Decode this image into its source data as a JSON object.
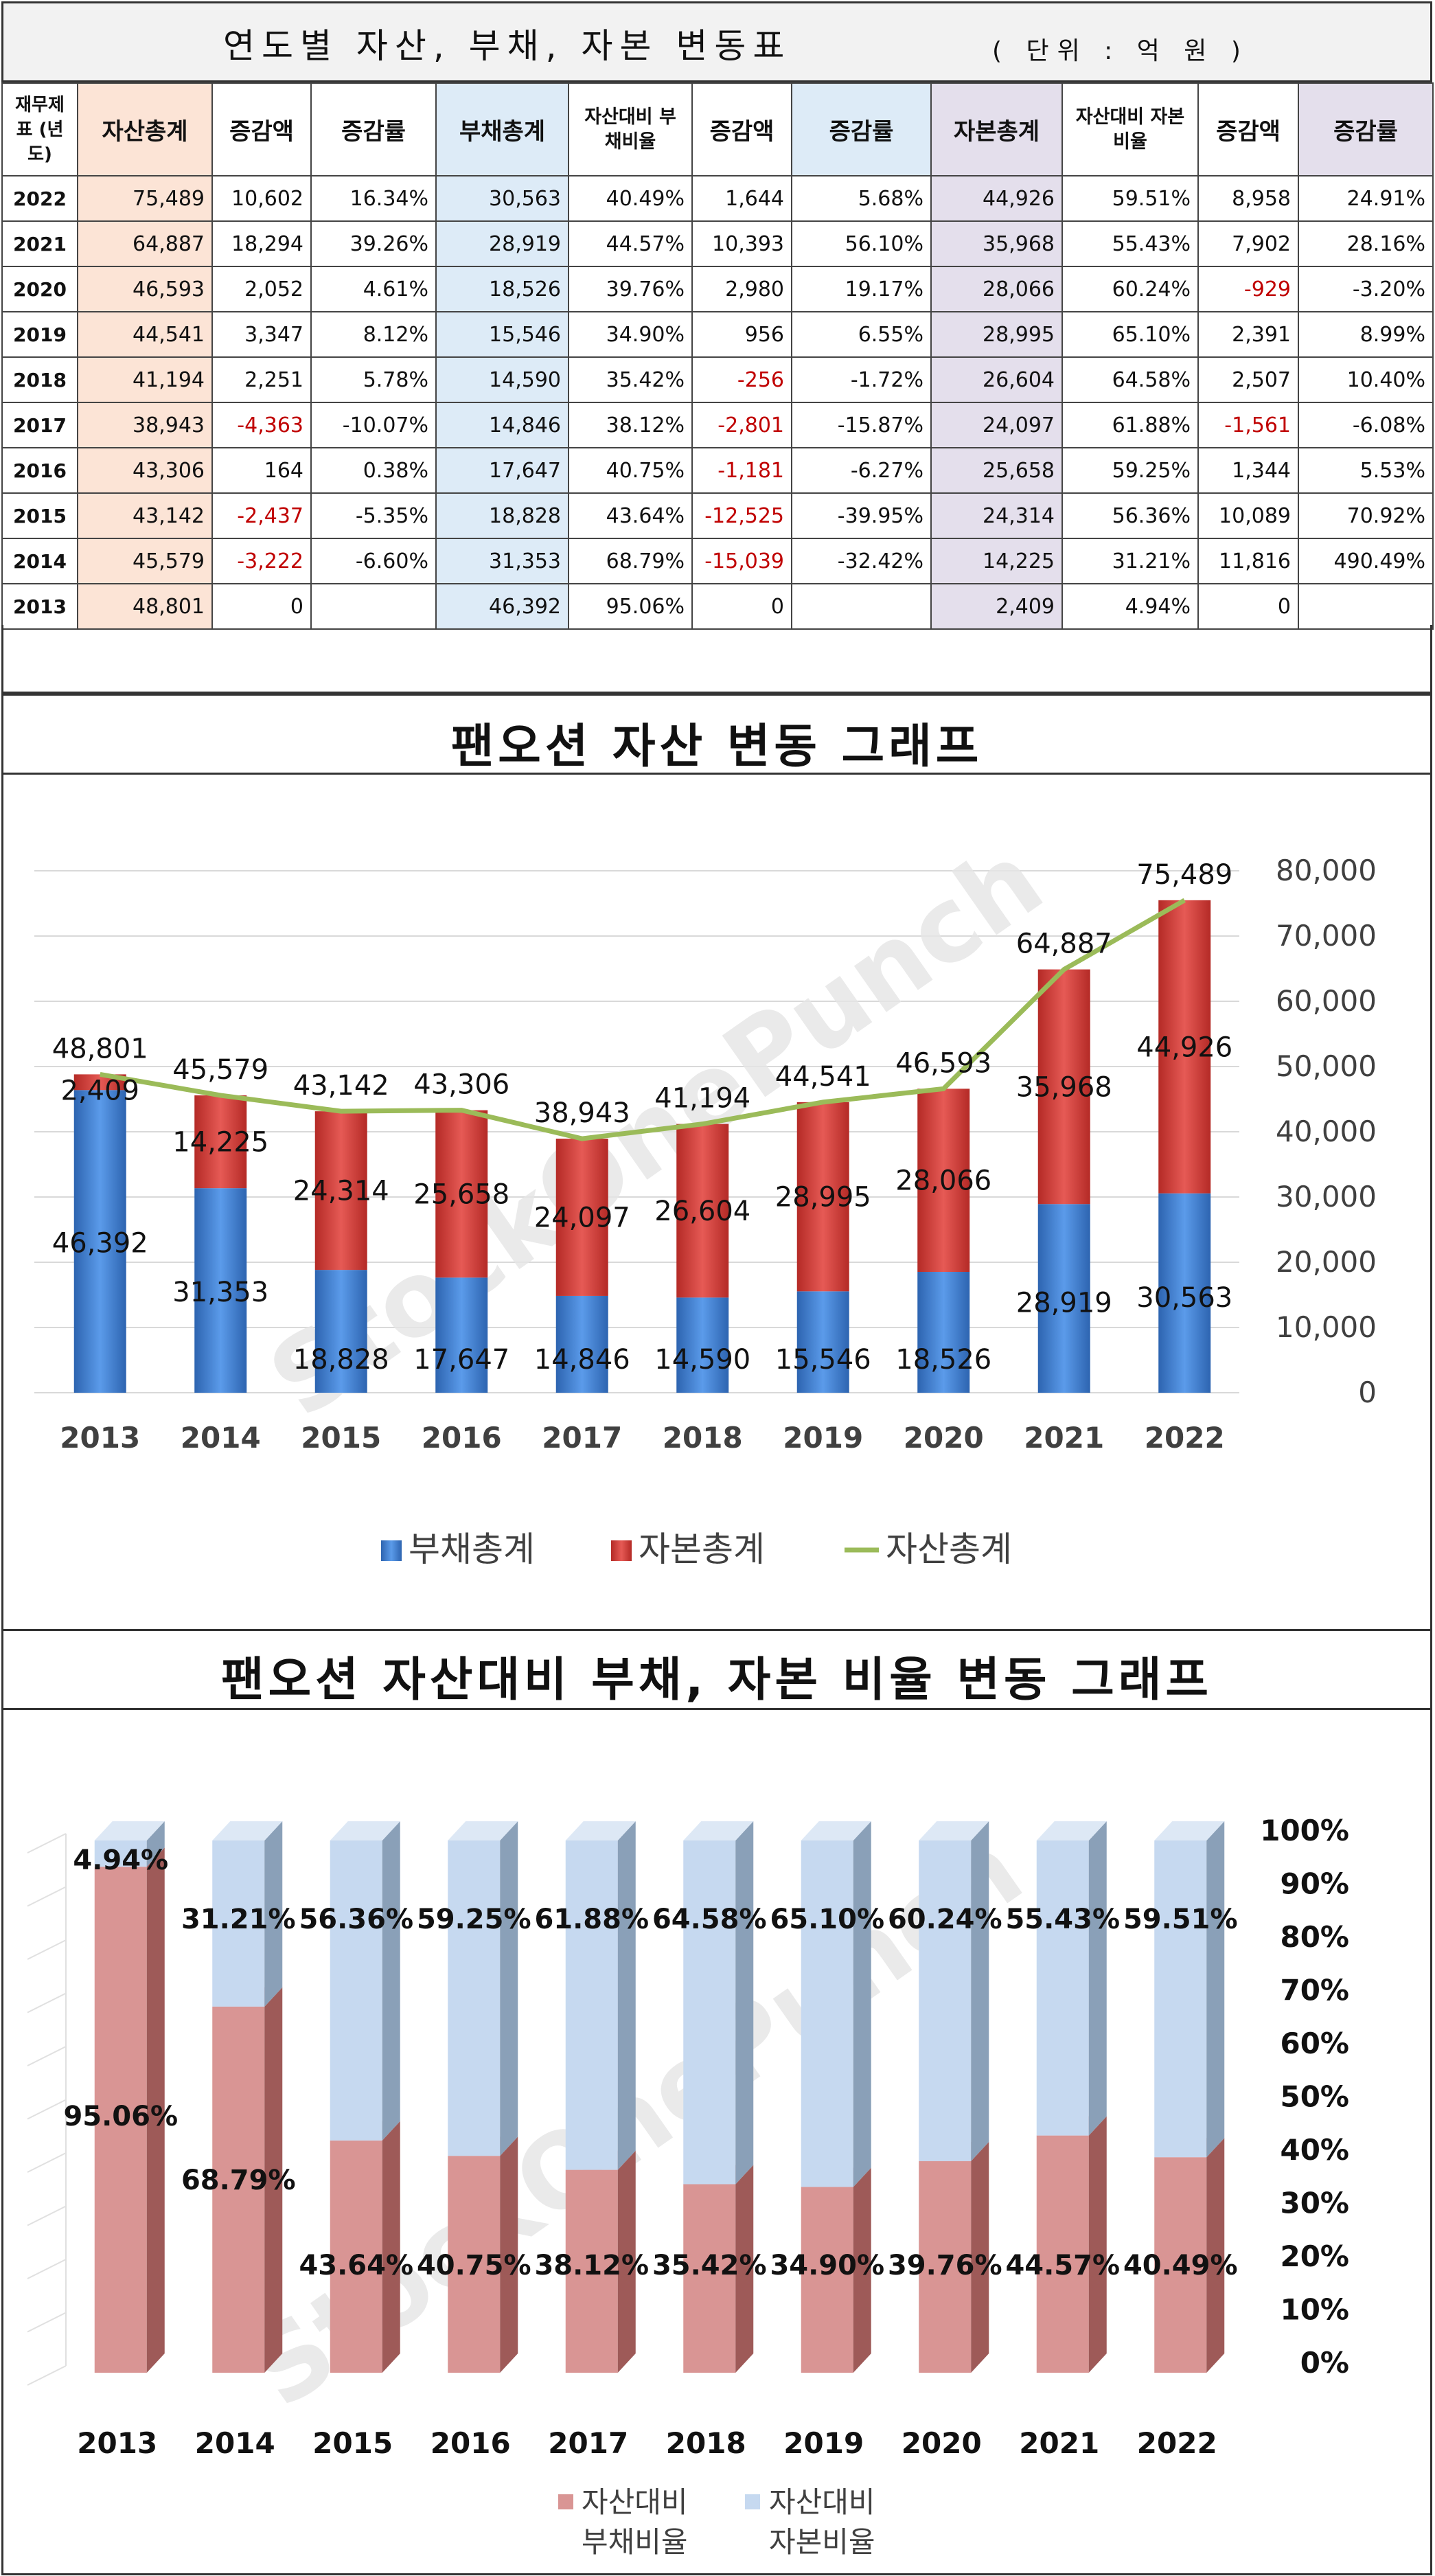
{
  "table": {
    "title": "연도별 자산, 부채, 자본 변동표",
    "unit": "( 단위 : 억 원 )",
    "headers": {
      "statement_year": "재무제표 (년도)",
      "total_assets": "자산총계",
      "asset_change": "증감액",
      "asset_rate": "증감률",
      "total_liabilities": "부채총계",
      "liab_ratio": "자산대비 부채비율",
      "liab_change": "증감액",
      "liab_rate": "증감률",
      "total_equity": "자본총계",
      "equity_ratio": "자산대비 자본비율",
      "equity_change": "증감액",
      "equity_rate": "증감률"
    },
    "rows": [
      {
        "year": "2022",
        "assets": "75,489",
        "asset_change": "10,602",
        "asset_rate": "16.34%",
        "liab": "30,563",
        "liab_ratio": "40.49%",
        "liab_change": "1,644",
        "liab_rate": "5.68%",
        "equity": "44,926",
        "equity_ratio": "59.51%",
        "equity_change": "8,958",
        "equity_rate": "24.91%"
      },
      {
        "year": "2021",
        "assets": "64,887",
        "asset_change": "18,294",
        "asset_rate": "39.26%",
        "liab": "28,919",
        "liab_ratio": "44.57%",
        "liab_change": "10,393",
        "liab_rate": "56.10%",
        "equity": "35,968",
        "equity_ratio": "55.43%",
        "equity_change": "7,902",
        "equity_rate": "28.16%"
      },
      {
        "year": "2020",
        "assets": "46,593",
        "asset_change": "2,052",
        "asset_rate": "4.61%",
        "liab": "18,526",
        "liab_ratio": "39.76%",
        "liab_change": "2,980",
        "liab_rate": "19.17%",
        "equity": "28,066",
        "equity_ratio": "60.24%",
        "equity_change": "-929",
        "equity_rate": "-3.20%"
      },
      {
        "year": "2019",
        "assets": "44,541",
        "asset_change": "3,347",
        "asset_rate": "8.12%",
        "liab": "15,546",
        "liab_ratio": "34.90%",
        "liab_change": "956",
        "liab_rate": "6.55%",
        "equity": "28,995",
        "equity_ratio": "65.10%",
        "equity_change": "2,391",
        "equity_rate": "8.99%"
      },
      {
        "year": "2018",
        "assets": "41,194",
        "asset_change": "2,251",
        "asset_rate": "5.78%",
        "liab": "14,590",
        "liab_ratio": "35.42%",
        "liab_change": "-256",
        "liab_rate": "-1.72%",
        "equity": "26,604",
        "equity_ratio": "64.58%",
        "equity_change": "2,507",
        "equity_rate": "10.40%"
      },
      {
        "year": "2017",
        "assets": "38,943",
        "asset_change": "-4,363",
        "asset_rate": "-10.07%",
        "liab": "14,846",
        "liab_ratio": "38.12%",
        "liab_change": "-2,801",
        "liab_rate": "-15.87%",
        "equity": "24,097",
        "equity_ratio": "61.88%",
        "equity_change": "-1,561",
        "equity_rate": "-6.08%"
      },
      {
        "year": "2016",
        "assets": "43,306",
        "asset_change": "164",
        "asset_rate": "0.38%",
        "liab": "17,647",
        "liab_ratio": "40.75%",
        "liab_change": "-1,181",
        "liab_rate": "-6.27%",
        "equity": "25,658",
        "equity_ratio": "59.25%",
        "equity_change": "1,344",
        "equity_rate": "5.53%"
      },
      {
        "year": "2015",
        "assets": "43,142",
        "asset_change": "-2,437",
        "asset_rate": "-5.35%",
        "liab": "18,828",
        "liab_ratio": "43.64%",
        "liab_change": "-12,525",
        "liab_rate": "-39.95%",
        "equity": "24,314",
        "equity_ratio": "56.36%",
        "equity_change": "10,089",
        "equity_rate": "70.92%"
      },
      {
        "year": "2014",
        "assets": "45,579",
        "asset_change": "-3,222",
        "asset_rate": "-6.60%",
        "liab": "31,353",
        "liab_ratio": "68.79%",
        "liab_change": "-15,039",
        "liab_rate": "-32.42%",
        "equity": "14,225",
        "equity_ratio": "31.21%",
        "equity_change": "11,816",
        "equity_rate": "490.49%"
      },
      {
        "year": "2013",
        "assets": "48,801",
        "asset_change": "0",
        "asset_rate": "",
        "liab": "46,392",
        "liab_ratio": "95.06%",
        "liab_change": "0",
        "liab_rate": "",
        "equity": "2,409",
        "equity_ratio": "4.94%",
        "equity_change": "0",
        "equity_rate": ""
      }
    ]
  },
  "colors": {
    "liability": "#3f7fcc",
    "equity": "#d63a36",
    "asset_line": "#9bbb59",
    "liab_ratio": "#d99594",
    "equity_ratio": "#c6d9f0",
    "negative_text": "#c00000",
    "asset_header": "#fce4d6",
    "liab_header": "#ddebf7",
    "equity_header": "#e4dfec"
  },
  "watermark": "StockOnePunch",
  "chart_data": [
    {
      "type": "bar",
      "stacked": true,
      "title": "팬오션 자산 변동 그래프",
      "categories": [
        "2013",
        "2014",
        "2015",
        "2016",
        "2017",
        "2018",
        "2019",
        "2020",
        "2021",
        "2022"
      ],
      "series": [
        {
          "name": "부채총계",
          "kind": "bar",
          "values": [
            46392,
            31353,
            18828,
            17647,
            14846,
            14590,
            15546,
            18526,
            28919,
            30563
          ]
        },
        {
          "name": "자본총계",
          "kind": "bar",
          "values": [
            2409,
            14225,
            24314,
            25658,
            24097,
            26604,
            28995,
            28066,
            35968,
            44926
          ]
        },
        {
          "name": "자산총계",
          "kind": "line",
          "values": [
            48801,
            45579,
            43142,
            43306,
            38943,
            41194,
            44541,
            46593,
            64887,
            75489
          ]
        }
      ],
      "ylim": [
        0,
        80000
      ],
      "yticks": [
        "0",
        "10,000",
        "20,000",
        "30,000",
        "40,000",
        "50,000",
        "60,000",
        "70,000",
        "80,000"
      ],
      "y_axis_side": "right",
      "grid": true,
      "legend_position": "bottom"
    },
    {
      "type": "bar",
      "stacked": true,
      "style": "3d",
      "title": "팬오션 자산대비 부채, 자본 비율 변동 그래프",
      "categories": [
        "2013",
        "2014",
        "2015",
        "2016",
        "2017",
        "2018",
        "2019",
        "2020",
        "2021",
        "2022"
      ],
      "series": [
        {
          "name": "자산대비 부채비율",
          "values": [
            95.06,
            68.79,
            43.64,
            40.75,
            38.12,
            35.42,
            34.9,
            39.76,
            44.57,
            40.49
          ]
        },
        {
          "name": "자산대비 자본비율",
          "values": [
            4.94,
            31.21,
            56.36,
            59.25,
            61.88,
            64.58,
            65.1,
            60.24,
            55.43,
            59.51
          ]
        }
      ],
      "ylim": [
        0,
        100
      ],
      "yticks": [
        "0%",
        "10%",
        "20%",
        "30%",
        "40%",
        "50%",
        "60%",
        "70%",
        "80%",
        "90%",
        "100%"
      ],
      "y_axis_side": "right",
      "legend_position": "bottom"
    }
  ]
}
